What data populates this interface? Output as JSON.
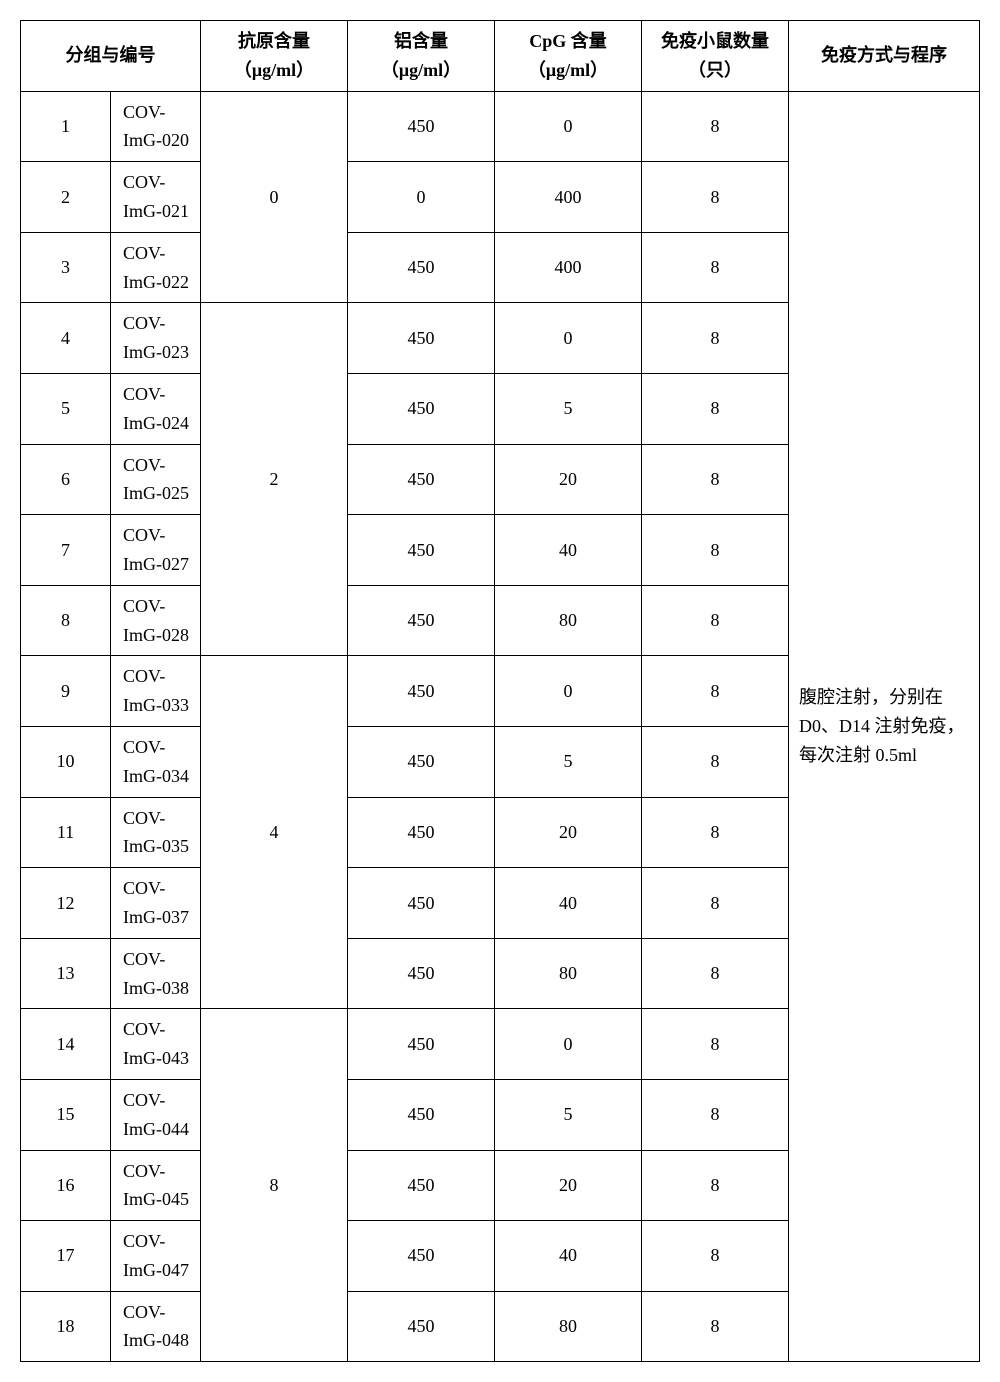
{
  "headers": {
    "group": "分组与编号",
    "antigen": "抗原含量",
    "antigen_unit": "（μg/ml）",
    "al": "铝含量",
    "al_unit": "（μg/ml）",
    "cpg": "CpG 含量",
    "cpg_unit": "（μg/ml）",
    "mice": "免疫小鼠数量（只）",
    "method": "免疫方式与程序"
  },
  "method_text": "腹腔注射，分别在 D0、D14 注射免疫，每次注射 0.5ml",
  "antigen_groups": [
    {
      "value": "0",
      "span": 3
    },
    {
      "value": "2",
      "span": 5
    },
    {
      "value": "4",
      "span": 5
    },
    {
      "value": "8",
      "span": 5
    }
  ],
  "rows": [
    {
      "n": "1",
      "id": "COV-ImG-020",
      "al": "450",
      "cpg": "0",
      "mice": "8"
    },
    {
      "n": "2",
      "id": "COV-ImG-021",
      "al": "0",
      "cpg": "400",
      "mice": "8"
    },
    {
      "n": "3",
      "id": "COV-ImG-022",
      "al": "450",
      "cpg": "400",
      "mice": "8"
    },
    {
      "n": "4",
      "id": "COV-ImG-023",
      "al": "450",
      "cpg": "0",
      "mice": "8"
    },
    {
      "n": "5",
      "id": "COV-ImG-024",
      "al": "450",
      "cpg": "5",
      "mice": "8"
    },
    {
      "n": "6",
      "id": "COV-ImG-025",
      "al": "450",
      "cpg": "20",
      "mice": "8"
    },
    {
      "n": "7",
      "id": "COV-ImG-027",
      "al": "450",
      "cpg": "40",
      "mice": "8"
    },
    {
      "n": "8",
      "id": "COV-ImG-028",
      "al": "450",
      "cpg": "80",
      "mice": "8"
    },
    {
      "n": "9",
      "id": "COV-ImG-033",
      "al": "450",
      "cpg": "0",
      "mice": "8"
    },
    {
      "n": "10",
      "id": "COV-ImG-034",
      "al": "450",
      "cpg": "5",
      "mice": "8"
    },
    {
      "n": "11",
      "id": "COV-ImG-035",
      "al": "450",
      "cpg": "20",
      "mice": "8"
    },
    {
      "n": "12",
      "id": "COV-ImG-037",
      "al": "450",
      "cpg": "40",
      "mice": "8"
    },
    {
      "n": "13",
      "id": "COV-ImG-038",
      "al": "450",
      "cpg": "80",
      "mice": "8"
    },
    {
      "n": "14",
      "id": "COV-ImG-043",
      "al": "450",
      "cpg": "0",
      "mice": "8"
    },
    {
      "n": "15",
      "id": "COV-ImG-044",
      "al": "450",
      "cpg": "5",
      "mice": "8"
    },
    {
      "n": "16",
      "id": "COV-ImG-045",
      "al": "450",
      "cpg": "20",
      "mice": "8"
    },
    {
      "n": "17",
      "id": "COV-ImG-047",
      "al": "450",
      "cpg": "40",
      "mice": "8"
    },
    {
      "n": "18",
      "id": "COV-ImG-048",
      "al": "450",
      "cpg": "80",
      "mice": "8"
    }
  ]
}
